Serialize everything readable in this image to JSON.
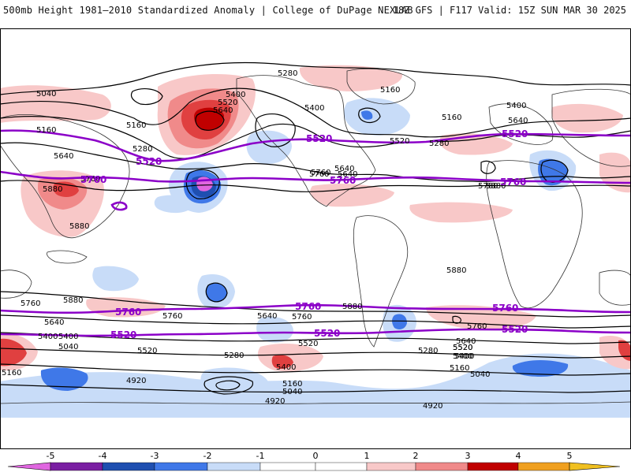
{
  "header": {
    "title_left": "500mb Height 1981–2010 Standardized Anomaly | College of DuPage NEXLAB",
    "title_right": "18Z GFS | F117 Valid: 15Z SUN MAR 30 2025"
  },
  "colors": {
    "neg5": "#e066e0",
    "neg4": "#7a1fa2",
    "neg3": "#1f4fb0",
    "neg2": "#3f78e8",
    "neg1": "#c8dcf8",
    "pos1": "#f8c8c8",
    "pos2": "#f08a8a",
    "pos3": "#e04040",
    "pos4": "#c00000",
    "pos5": "#f0a020",
    "purple_contour": "#8b00c8",
    "black_contour": "#000000"
  },
  "colorbar": {
    "ticks": [
      "-5",
      "-4",
      "-3",
      "-2",
      "-1",
      "0",
      "1",
      "2",
      "3",
      "4",
      "5"
    ]
  },
  "contour_labels": {
    "black": [
      "5280",
      "5400",
      "5160",
      "5160",
      "5040",
      "5160",
      "5280",
      "5520",
      "5640",
      "5400",
      "5520",
      "5640",
      "5400",
      "5280",
      "5640",
      "5760",
      "5880",
      "5880",
      "5760",
      "5640",
      "5760",
      "5880",
      "5160",
      "5400",
      "5520",
      "5640",
      "5760",
      "5400",
      "5880",
      "5760",
      "5880",
      "5760",
      "5640",
      "5400",
      "5040",
      "5520",
      "5280",
      "4920",
      "5160",
      "5040",
      "4920",
      "5400",
      "5520",
      "5760",
      "5640",
      "5520",
      "5400",
      "5280",
      "5160",
      "5040",
      "4920",
      "5160",
      "5640",
      "5760",
      "5880"
    ],
    "purple": [
      "5520",
      "5520",
      "5520",
      "5760",
      "5760",
      "5760",
      "5760",
      "5760",
      "5520",
      "5520",
      "5520",
      "5760"
    ]
  }
}
